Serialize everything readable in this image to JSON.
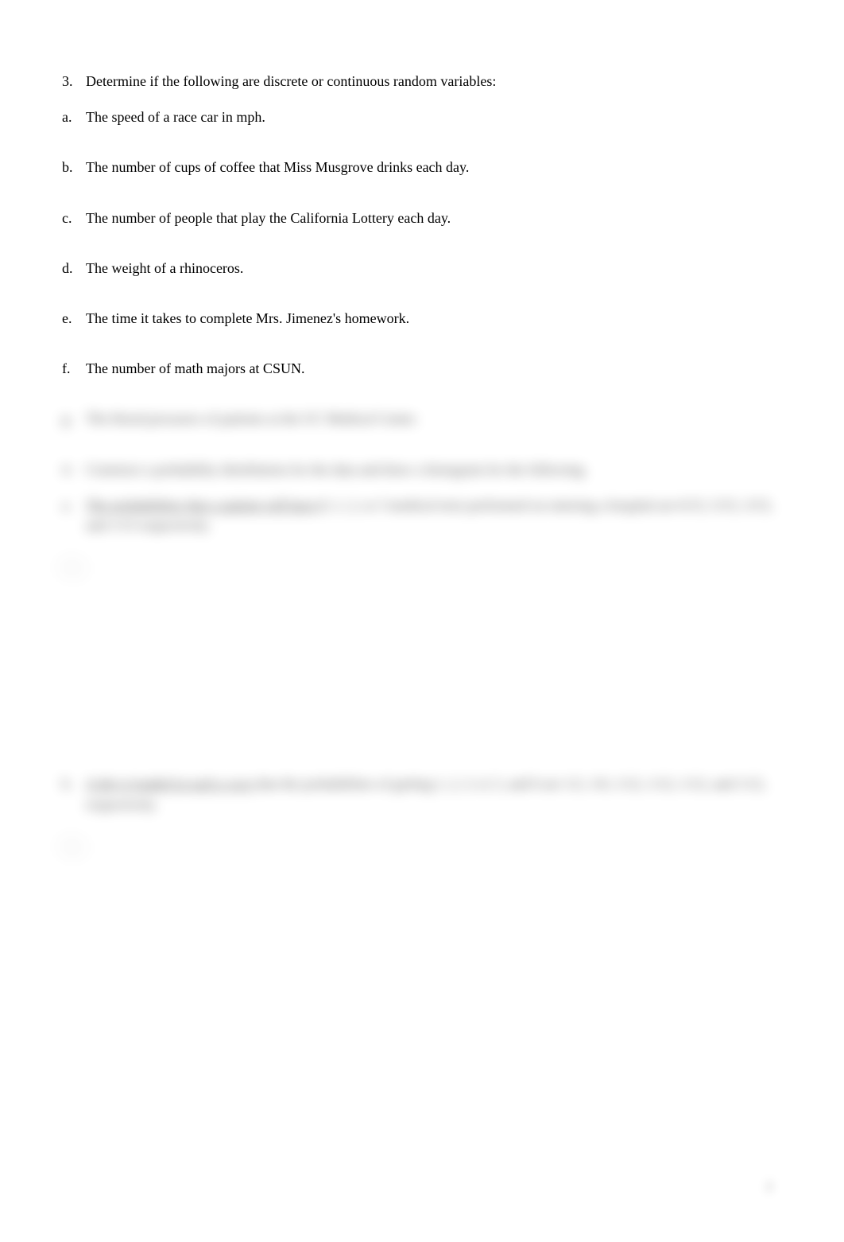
{
  "document": {
    "q3": {
      "marker": "3.",
      "text": "Determine if the following are discrete or continuous random variables:"
    },
    "items": {
      "a": {
        "marker": "a.",
        "text": "The speed of a race car in mph."
      },
      "b": {
        "marker": "b.",
        "text": "The number of cups of coffee that Miss Musgrove drinks each day."
      },
      "c": {
        "marker": "c.",
        "text": "The number of people that play the California Lottery each day."
      },
      "d": {
        "marker": "d.",
        "text": "The weight of a rhinoceros."
      },
      "e": {
        "marker": "e.",
        "text": "The time it takes to complete Mrs. Jimenez's homework."
      },
      "f": {
        "marker": "f.",
        "text": "The number of math majors at CSUN."
      },
      "g": {
        "marker": "g.",
        "text": "The blood pressures of patients at the UC Medical Center."
      }
    },
    "q4": {
      "marker": "4.",
      "text": "Construct a probability distribution for the data and draw a histogram for the following."
    },
    "q4a": {
      "marker": "a.",
      "lead": "The probabilities that a patient will have ",
      "mid": "0, 1, 2, or 3 medical tests performed on entering a hospital are 6/15, 5/15, 3/15, and 1/15 respectively."
    },
    "axis1": {
      "label": "P(x)"
    },
    "q4b": {
      "marker": "b.",
      "lead": "A die is loaded in such a way ",
      "mid": "that the probabilities of getting 1, 2, 3, 4, 5, and 6 are 1/2, 1/6, 1/12, 1/12, 1/12, and 1/12, respectively."
    },
    "axis2": {
      "label": "P(x)"
    },
    "pageNumber": "2"
  },
  "style": {
    "fontSize": 18,
    "textColor": "#000000",
    "backgroundColor": "#ffffff"
  }
}
